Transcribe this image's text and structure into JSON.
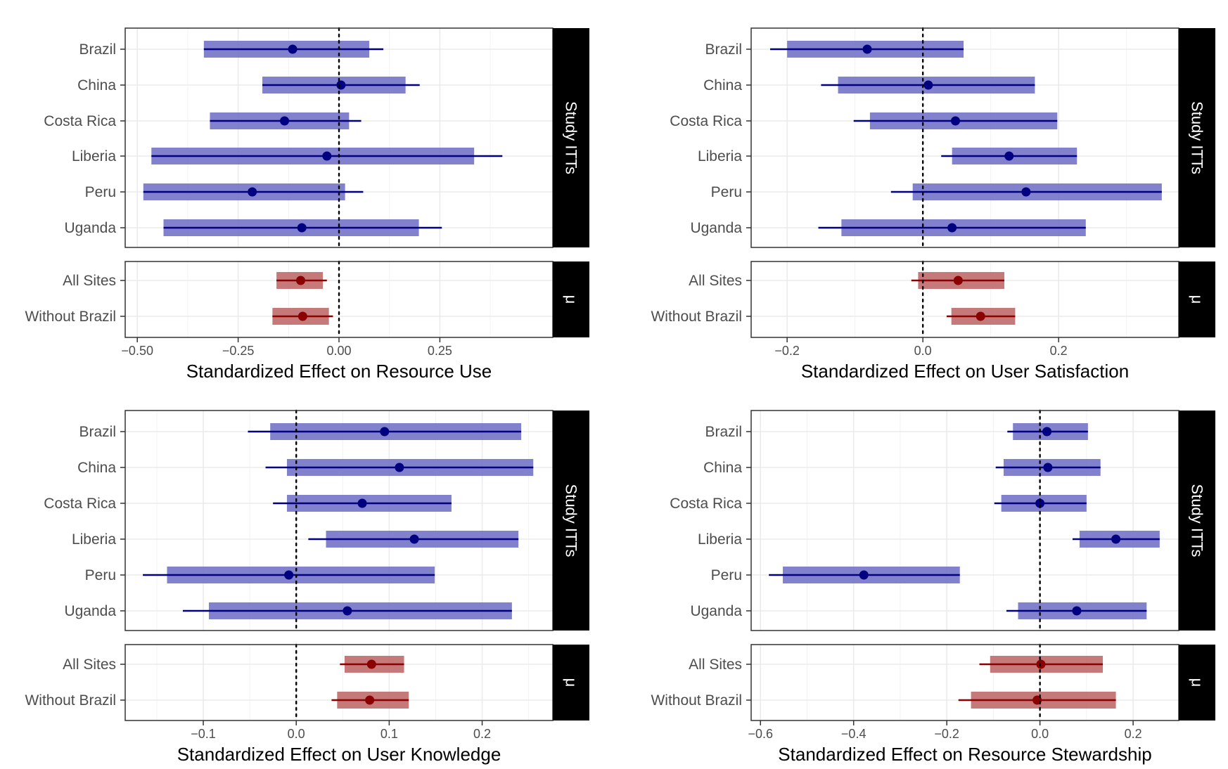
{
  "colors": {
    "itt_band": "#7373c8",
    "itt_line": "#000080",
    "pooled_band": "#c06a6a",
    "pooled_line": "#8b0000",
    "strip_bg": "#000000",
    "grid": "#ebebeb",
    "zero_line": "#000000"
  },
  "chart_data": [
    {
      "type": "forest",
      "xlabel": "Standardized Effect on Resource Use",
      "xlim": [
        -0.53,
        0.53
      ],
      "xticks": [
        -0.5,
        -0.25,
        0.0,
        0.25
      ],
      "xtick_labels": [
        "−0.50",
        "−0.25",
        "0.00",
        "0.25"
      ],
      "grid": true,
      "panels": [
        {
          "strip": "Study ITTs",
          "rows": [
            {
              "label": "Brazil",
              "estimate": -0.115,
              "band": [
                -0.335,
                0.075
              ],
              "ci": [
                -0.335,
                0.11
              ]
            },
            {
              "label": "China",
              "estimate": 0.005,
              "band": [
                -0.19,
                0.165
              ],
              "ci": [
                -0.19,
                0.2
              ]
            },
            {
              "label": "Costa Rica",
              "estimate": -0.135,
              "band": [
                -0.32,
                0.025
              ],
              "ci": [
                -0.32,
                0.055
              ]
            },
            {
              "label": "Liberia",
              "estimate": -0.03,
              "band": [
                -0.465,
                0.335
              ],
              "ci": [
                -0.465,
                0.405
              ]
            },
            {
              "label": "Peru",
              "estimate": -0.215,
              "band": [
                -0.485,
                0.015
              ],
              "ci": [
                -0.485,
                0.06
              ]
            },
            {
              "label": "Uganda",
              "estimate": -0.092,
              "band": [
                -0.435,
                0.198
              ],
              "ci": [
                -0.435,
                0.255
              ]
            }
          ]
        },
        {
          "strip": "μ",
          "rows": [
            {
              "label": "All Sites",
              "estimate": -0.095,
              "band": [
                -0.155,
                -0.04
              ],
              "ci": [
                -0.155,
                -0.03
              ]
            },
            {
              "label": "Without Brazil",
              "estimate": -0.09,
              "band": [
                -0.165,
                -0.025
              ],
              "ci": [
                -0.165,
                -0.015
              ]
            }
          ]
        }
      ]
    },
    {
      "type": "forest",
      "xlabel": "Standardized Effect on User Satisfaction",
      "xlim": [
        -0.253,
        0.377
      ],
      "xticks": [
        -0.2,
        0.0,
        0.2
      ],
      "xtick_labels": [
        "−0.2",
        "0.0",
        "0.2"
      ],
      "grid": true,
      "panels": [
        {
          "strip": "Study ITTs",
          "rows": [
            {
              "label": "Brazil",
              "estimate": -0.082,
              "band": [
                -0.2,
                0.06
              ],
              "ci": [
                -0.225,
                0.06
              ]
            },
            {
              "label": "China",
              "estimate": 0.008,
              "band": [
                -0.125,
                0.165
              ],
              "ci": [
                -0.15,
                0.165
              ]
            },
            {
              "label": "Costa Rica",
              "estimate": 0.048,
              "band": [
                -0.078,
                0.198
              ],
              "ci": [
                -0.102,
                0.198
              ]
            },
            {
              "label": "Liberia",
              "estimate": 0.127,
              "band": [
                0.043,
                0.227
              ],
              "ci": [
                0.027,
                0.227
              ]
            },
            {
              "label": "Peru",
              "estimate": 0.152,
              "band": [
                -0.015,
                0.352
              ],
              "ci": [
                -0.047,
                0.352
              ]
            },
            {
              "label": "Uganda",
              "estimate": 0.043,
              "band": [
                -0.12,
                0.24
              ],
              "ci": [
                -0.154,
                0.24
              ]
            }
          ]
        },
        {
          "strip": "μ",
          "rows": [
            {
              "label": "All Sites",
              "estimate": 0.052,
              "band": [
                -0.007,
                0.12
              ],
              "ci": [
                -0.017,
                0.12
              ]
            },
            {
              "label": "Without Brazil",
              "estimate": 0.085,
              "band": [
                0.042,
                0.136
              ],
              "ci": [
                0.035,
                0.136
              ]
            }
          ]
        }
      ]
    },
    {
      "type": "forest",
      "xlabel": "Standardized Effect on User Knowledge",
      "xlim": [
        -0.184,
        0.276
      ],
      "xticks": [
        -0.1,
        0.0,
        0.1,
        0.2
      ],
      "xtick_labels": [
        "−0.1",
        "0.0",
        "0.1",
        "0.2"
      ],
      "grid": true,
      "panels": [
        {
          "strip": "Study ITTs",
          "rows": [
            {
              "label": "Brazil",
              "estimate": 0.095,
              "band": [
                -0.028,
                0.242
              ],
              "ci": [
                -0.052,
                0.242
              ]
            },
            {
              "label": "China",
              "estimate": 0.111,
              "band": [
                -0.01,
                0.255
              ],
              "ci": [
                -0.033,
                0.255
              ]
            },
            {
              "label": "Costa Rica",
              "estimate": 0.071,
              "band": [
                -0.01,
                0.167
              ],
              "ci": [
                -0.025,
                0.167
              ]
            },
            {
              "label": "Liberia",
              "estimate": 0.127,
              "band": [
                0.032,
                0.239
              ],
              "ci": [
                0.013,
                0.239
              ]
            },
            {
              "label": "Peru",
              "estimate": -0.008,
              "band": [
                -0.139,
                0.149
              ],
              "ci": [
                -0.165,
                0.149
              ]
            },
            {
              "label": "Uganda",
              "estimate": 0.055,
              "band": [
                -0.094,
                0.232
              ],
              "ci": [
                -0.122,
                0.232
              ]
            }
          ]
        },
        {
          "strip": "μ",
          "rows": [
            {
              "label": "All Sites",
              "estimate": 0.081,
              "band": [
                0.052,
                0.116
              ],
              "ci": [
                0.047,
                0.116
              ]
            },
            {
              "label": "Without Brazil",
              "estimate": 0.079,
              "band": [
                0.044,
                0.121
              ],
              "ci": [
                0.038,
                0.121
              ]
            }
          ]
        }
      ]
    },
    {
      "type": "forest",
      "xlabel": "Standardized Effect on Resource Stewardship",
      "xlim": [
        -0.62,
        0.298
      ],
      "xticks": [
        -0.6,
        -0.4,
        -0.2,
        0.0,
        0.2
      ],
      "xtick_labels": [
        "−0.6",
        "−0.4",
        "−0.2",
        "0.0",
        "0.2"
      ],
      "grid": true,
      "panels": [
        {
          "strip": "Study ITTs",
          "rows": [
            {
              "label": "Brazil",
              "estimate": 0.015,
              "band": [
                -0.058,
                0.103
              ],
              "ci": [
                -0.07,
                0.103
              ]
            },
            {
              "label": "China",
              "estimate": 0.017,
              "band": [
                -0.078,
                0.13
              ],
              "ci": [
                -0.095,
                0.13
              ]
            },
            {
              "label": "Costa Rica",
              "estimate": 0.0,
              "band": [
                -0.083,
                0.1
              ],
              "ci": [
                -0.098,
                0.1
              ]
            },
            {
              "label": "Liberia",
              "estimate": 0.163,
              "band": [
                0.085,
                0.257
              ],
              "ci": [
                0.07,
                0.257
              ]
            },
            {
              "label": "Peru",
              "estimate": -0.378,
              "band": [
                -0.552,
                -0.172
              ],
              "ci": [
                -0.582,
                -0.172
              ]
            },
            {
              "label": "Uganda",
              "estimate": 0.079,
              "band": [
                -0.047,
                0.229
              ],
              "ci": [
                -0.072,
                0.229
              ]
            }
          ]
        },
        {
          "strip": "μ",
          "rows": [
            {
              "label": "All Sites",
              "estimate": 0.002,
              "band": [
                -0.107,
                0.135
              ],
              "ci": [
                -0.13,
                0.135
              ]
            },
            {
              "label": "Without Brazil",
              "estimate": -0.006,
              "band": [
                -0.148,
                0.163
              ],
              "ci": [
                -0.175,
                0.163
              ]
            }
          ]
        }
      ]
    }
  ]
}
